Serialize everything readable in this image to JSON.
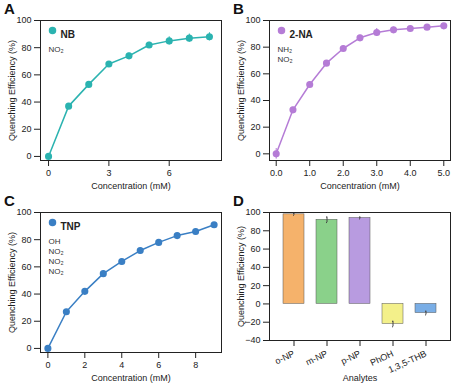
{
  "chart_data": [
    {
      "type": "line",
      "title": "A",
      "x_label": "Concentration (mM)",
      "y_label": "Quenching Efficiency (%)",
      "x": [
        0,
        1,
        2,
        3,
        4,
        5,
        6,
        7,
        8
      ],
      "series": [
        {
          "name": "NB",
          "color": "#2bb3b0",
          "marker": "circle",
          "values": [
            0,
            37,
            53,
            68,
            74,
            82,
            85,
            87,
            88
          ],
          "errors": [
            0.5,
            1,
            1.5,
            1.5,
            2,
            2,
            3,
            3,
            3
          ]
        }
      ],
      "xlim": [
        -0.4,
        8.6
      ],
      "ylim": [
        -3,
        100
      ],
      "xticks": [
        0,
        3,
        6
      ],
      "yticks": [
        0,
        20,
        40,
        60,
        80,
        100
      ],
      "legend": "top-left",
      "annotations": [
        "NO₂"
      ]
    },
    {
      "type": "line",
      "title": "B",
      "x_label": "Concentration (mM)",
      "y_label": "Quenching Efficiency (%)",
      "x": [
        0,
        0.5,
        1,
        1.5,
        2,
        2.5,
        3,
        3.5,
        4,
        4.5,
        5
      ],
      "series": [
        {
          "name": "2-NA",
          "color": "#b57cd6",
          "marker": "circle",
          "values": [
            0,
            33,
            52,
            68,
            79,
            87,
            91,
            93,
            94,
            95,
            96
          ],
          "errors": [
            4,
            2,
            2,
            2,
            2,
            2,
            3,
            2,
            1,
            1,
            1
          ]
        }
      ],
      "xlim": [
        -0.2,
        5.2
      ],
      "ylim": [
        -5,
        100
      ],
      "xticks": [
        0,
        1,
        2,
        3,
        4,
        5
      ],
      "yticks": [
        0,
        20,
        40,
        60,
        80,
        100
      ],
      "legend": "top-left",
      "annotations": [
        "NH₂",
        "NO₂"
      ]
    },
    {
      "type": "line",
      "title": "C",
      "x_label": "Concentration (mM)",
      "y_label": "Quenching Efficiency (%)",
      "x": [
        0,
        1,
        2,
        3,
        4,
        5,
        6,
        7,
        8,
        9
      ],
      "series": [
        {
          "name": "TNP",
          "color": "#3a7fc4",
          "marker": "circle",
          "values": [
            0,
            27,
            42,
            55,
            64,
            72,
            78,
            83,
            86,
            91
          ],
          "errors": [
            0.5,
            1,
            1,
            1.5,
            1.5,
            1.5,
            1.5,
            1.5,
            1.5,
            1.5
          ]
        }
      ],
      "xlim": [
        -0.4,
        9.4
      ],
      "ylim": [
        -3,
        100
      ],
      "xticks": [
        0,
        2,
        4,
        6,
        8
      ],
      "yticks": [
        0,
        20,
        40,
        60,
        80,
        100
      ],
      "legend": "top-left",
      "annotations": [
        "OH",
        "NO₂",
        "NO₂",
        "NO₂"
      ]
    },
    {
      "type": "bar",
      "title": "D",
      "x_label": "Analytes",
      "y_label": "Quenching Efficiency (%)",
      "categories": [
        "o-NP",
        "m-NP",
        "p-NP",
        "PhOH",
        "1,3,5-THB"
      ],
      "values": [
        98,
        92,
        94,
        -22,
        -10
      ],
      "errors": [
        1,
        3,
        1,
        3,
        2
      ],
      "colors": [
        "#f5b26b",
        "#8ad18a",
        "#b89be0",
        "#f3f08a",
        "#7aaee6"
      ],
      "ylim": [
        -40,
        100
      ],
      "yticks": [
        -40,
        -20,
        0,
        20,
        40,
        60,
        80,
        100
      ]
    }
  ]
}
